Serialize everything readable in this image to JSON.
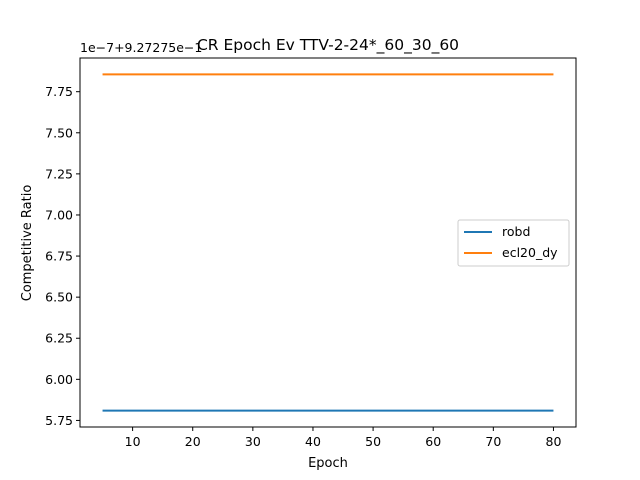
{
  "chart_data": {
    "type": "line",
    "title": "CR Epoch Ev TTV-2-24*_60_30_60",
    "xlabel": "Epoch",
    "ylabel": "Competitive Ratio",
    "y_offset_label": "1e−7+9.27275e−1",
    "x": [
      5,
      80
    ],
    "xlim": [
      1.25,
      83.75
    ],
    "ylim": [
      5.71,
      7.955
    ],
    "x_ticks": [
      10,
      20,
      30,
      40,
      50,
      60,
      70,
      80
    ],
    "y_ticks": [
      5.75,
      6.0,
      6.25,
      6.5,
      6.75,
      7.0,
      7.25,
      7.5,
      7.75
    ],
    "y_tick_labels": [
      "5.75",
      "6.00",
      "6.25",
      "6.50",
      "6.75",
      "7.00",
      "7.25",
      "7.50",
      "7.75"
    ],
    "grid": false,
    "legend_position": "center-right",
    "series": [
      {
        "name": "robd",
        "color": "#1f77b4",
        "values": [
          5.81,
          5.81
        ]
      },
      {
        "name": "ecl20_dy",
        "color": "#ff7f0e",
        "values": [
          7.855,
          7.855
        ]
      }
    ]
  }
}
